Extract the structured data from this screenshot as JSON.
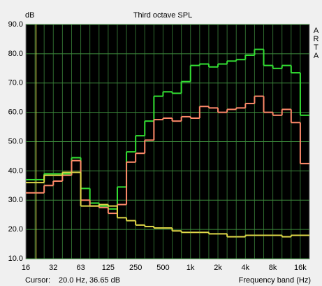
{
  "chart_data": {
    "type": "step",
    "title": "Third octave SPL",
    "y_label": "dB",
    "side_label": "ARTA",
    "x_label": "Frequency band (Hz)",
    "cursor_label": "Cursor:",
    "cursor_value": "20.0 Hz, 36.65 dB",
    "categories": [
      "16",
      null,
      null,
      "32",
      null,
      null,
      "63",
      null,
      null,
      "125",
      null,
      null,
      "250",
      null,
      null,
      "500",
      null,
      null,
      "1k",
      null,
      null,
      "2k",
      null,
      null,
      "4k",
      null,
      null,
      "8k",
      null,
      null,
      "16k"
    ],
    "series": [
      {
        "name": "green",
        "color": "#33e033",
        "values": [
          37,
          37,
          39,
          39,
          39,
          44.5,
          34,
          29,
          28,
          27,
          34.5,
          46.5,
          52,
          57,
          65.5,
          67,
          66.5,
          70.5,
          76,
          76.5,
          75.5,
          76.5,
          77.5,
          78,
          79.5,
          81.5,
          76,
          75,
          76,
          73.5,
          59
        ]
      },
      {
        "name": "salmon",
        "color": "#ff8a6a",
        "values": [
          32.5,
          32.5,
          35,
          36.5,
          38.5,
          43.5,
          30,
          28,
          27.5,
          25.5,
          28.5,
          43,
          46,
          50.5,
          57.5,
          58,
          57,
          58.5,
          58,
          62,
          61.5,
          60,
          61,
          61.5,
          63,
          65.5,
          60,
          59,
          61,
          56.5,
          42.5
        ]
      },
      {
        "name": "yellow",
        "color": "#e0d848",
        "values": [
          36,
          36,
          38.5,
          38.5,
          39.5,
          39.5,
          28,
          28,
          28.5,
          28,
          24,
          23,
          21.5,
          21,
          20.5,
          20.5,
          19.5,
          19,
          19,
          19,
          18.5,
          18.5,
          17.5,
          17.5,
          18,
          18,
          18,
          18,
          17.5,
          18,
          18
        ]
      }
    ],
    "ylim": [
      10,
      90
    ],
    "yticks": [
      {
        "value": 10,
        "label": "10.0"
      },
      {
        "value": 20,
        "label": "20.0"
      },
      {
        "value": 30,
        "label": "30.0"
      },
      {
        "value": 40,
        "label": "40.0"
      },
      {
        "value": 50,
        "label": "50.0"
      },
      {
        "value": 60,
        "label": "60.0"
      },
      {
        "value": 70,
        "label": "70.0"
      },
      {
        "value": 80,
        "label": "80.0"
      },
      {
        "value": 90,
        "label": "90.0"
      }
    ],
    "grid": true
  }
}
